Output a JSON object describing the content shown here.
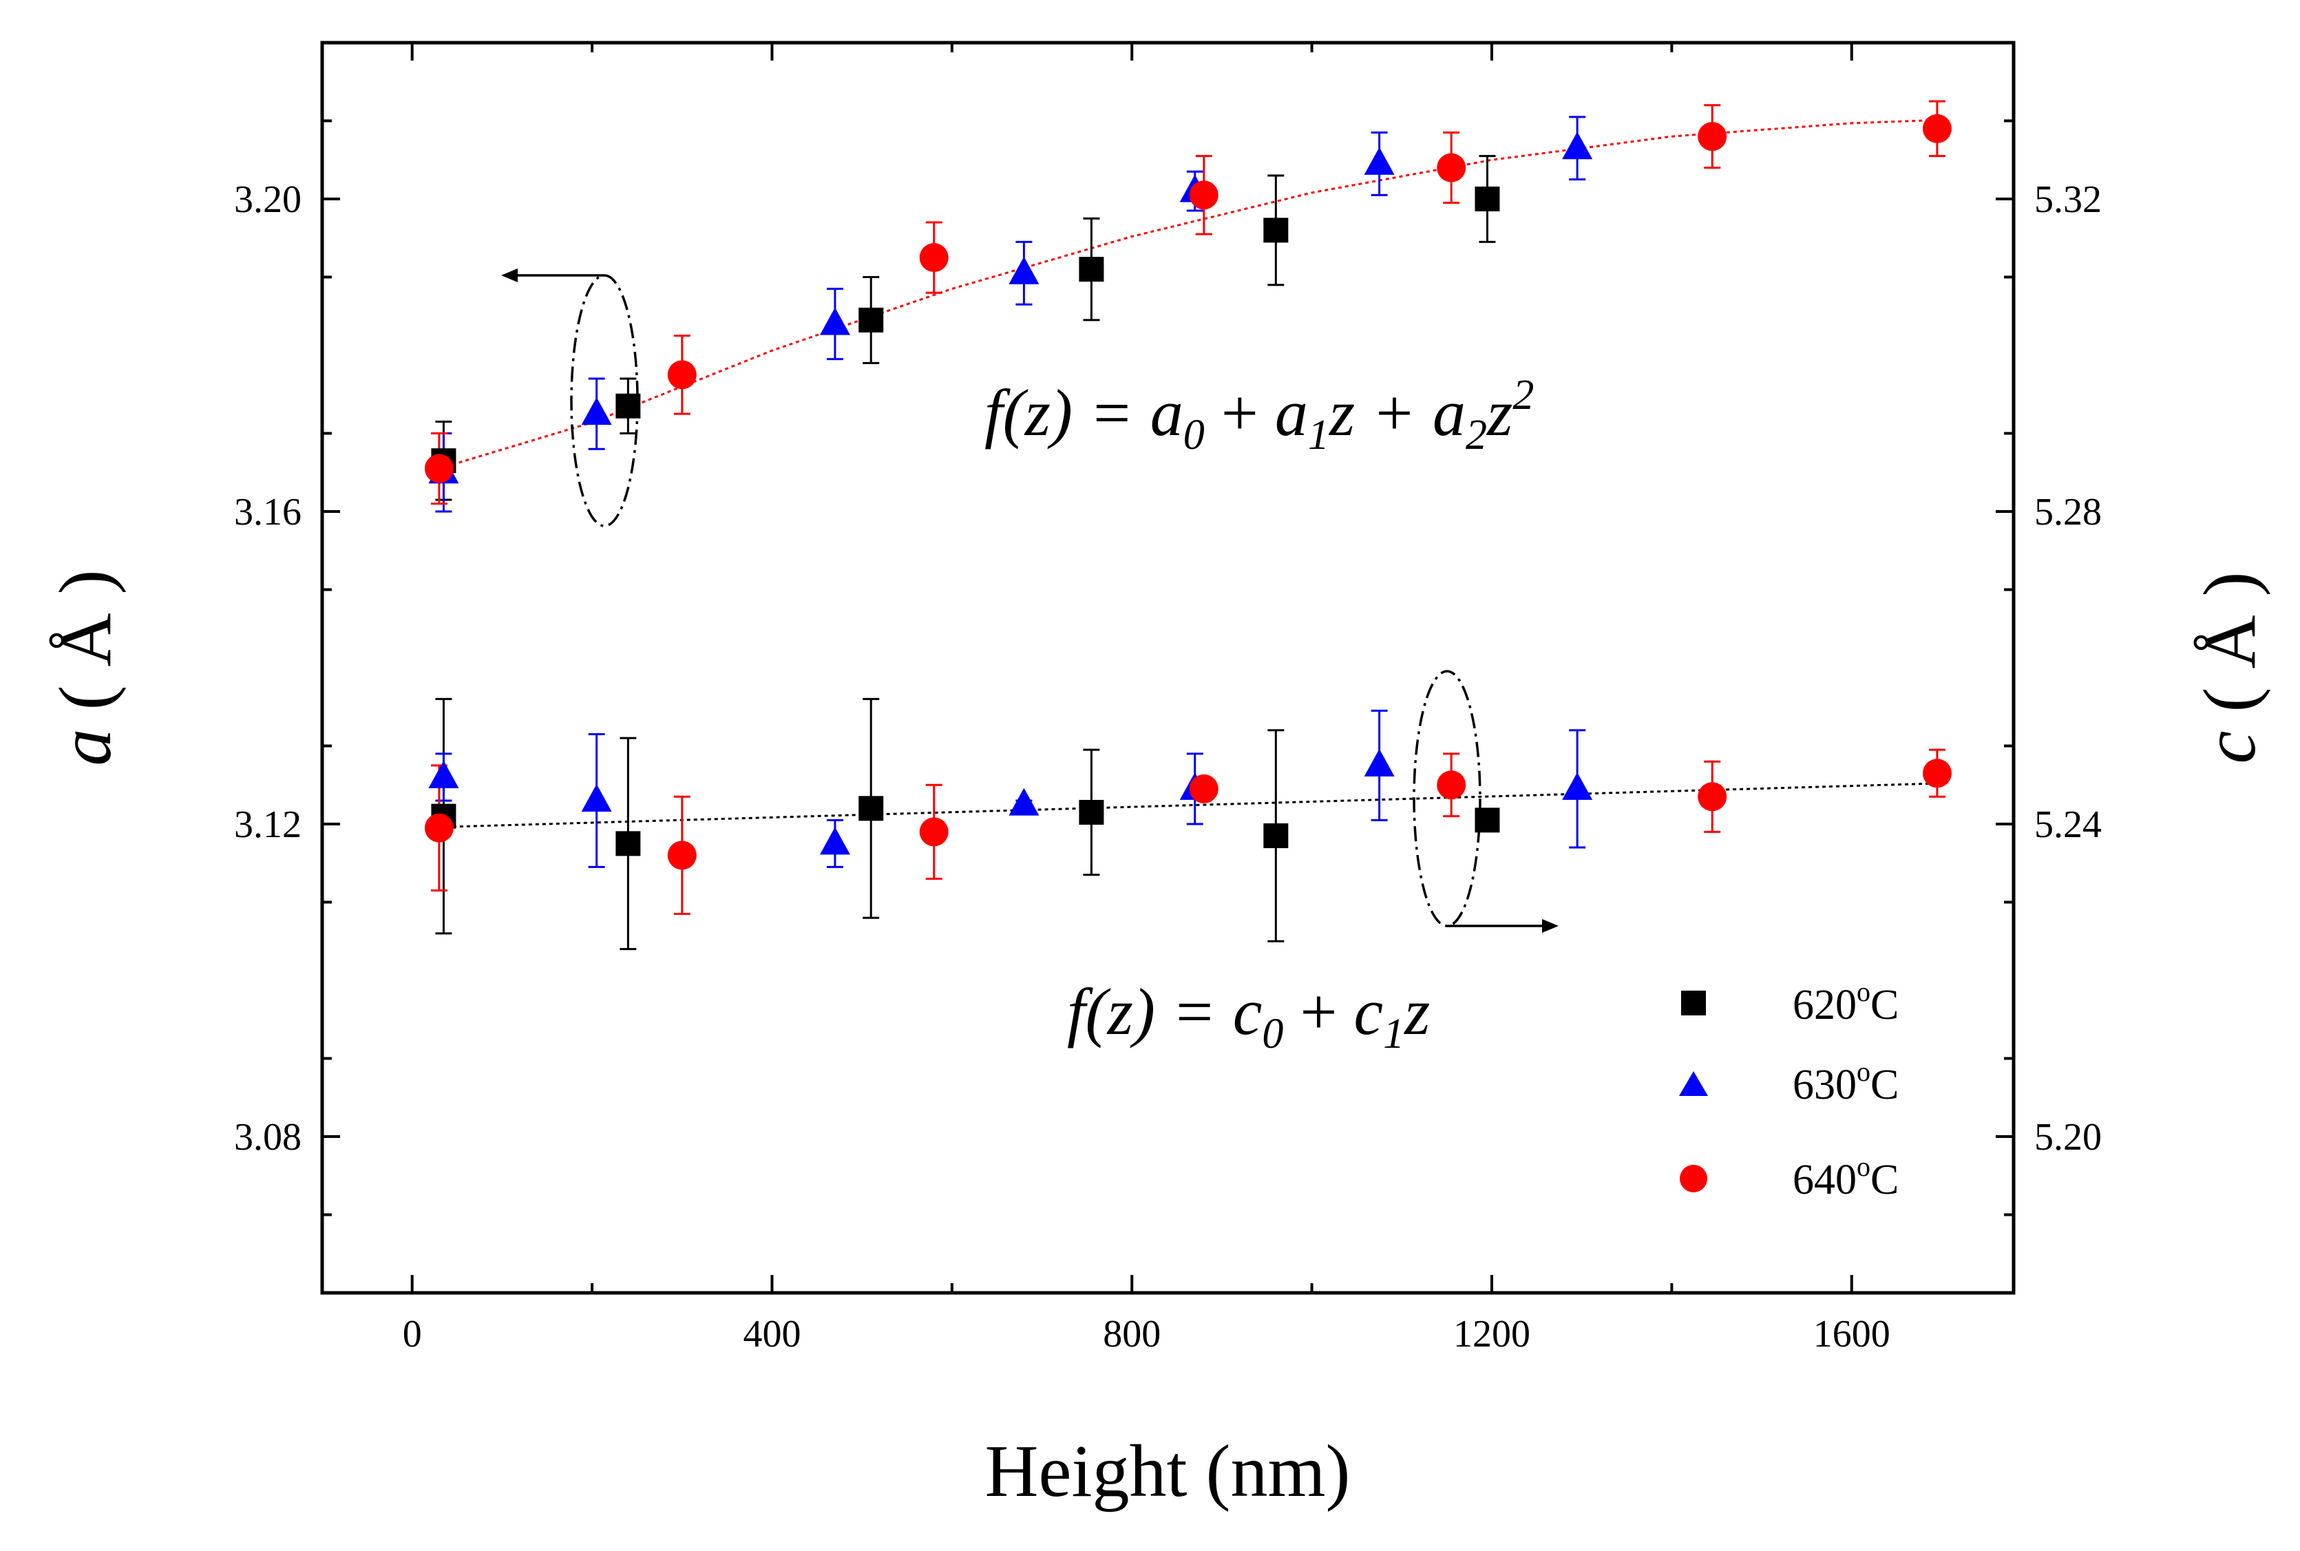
{
  "chart_data": {
    "type": "scatter",
    "title": "",
    "xlabel": "Height (nm)",
    "ylabel_left_var": "a",
    "ylabel_left_unit": "( Å )",
    "ylabel_right_var": "c",
    "ylabel_right_unit": "( Å )",
    "xlim": [
      -100,
      1780
    ],
    "ylim_left": [
      3.06,
      3.22
    ],
    "ylim_right": [
      5.18,
      5.34
    ],
    "x_ticks": [
      0,
      400,
      800,
      1200,
      1600
    ],
    "x_tick_labels": [
      "0",
      "400",
      "800",
      "1200",
      "1600"
    ],
    "y_left_ticks": [
      3.08,
      3.12,
      3.16,
      3.2
    ],
    "y_left_tick_labels": [
      "3.08",
      "3.12",
      "3.16",
      "3.20"
    ],
    "y_right_ticks": [
      5.2,
      5.24,
      5.28,
      5.32
    ],
    "y_right_tick_labels": [
      "5.20",
      "5.24",
      "5.28",
      "5.32"
    ],
    "series": [
      {
        "name": "620°C",
        "label_base": "620",
        "label_sup": "o",
        "label_unit": "C",
        "marker": "square",
        "color": "#000000",
        "axis": "left",
        "points": [
          {
            "x": 35,
            "y": 3.1665,
            "err": 0.005
          },
          {
            "x": 240,
            "y": 3.1735,
            "err": 0.0035
          },
          {
            "x": 510,
            "y": 3.1845,
            "err": 0.0055
          },
          {
            "x": 755,
            "y": 3.191,
            "err": 0.0065
          },
          {
            "x": 960,
            "y": 3.196,
            "err": 0.007
          },
          {
            "x": 1195,
            "y": 3.2,
            "err": 0.0055
          }
        ]
      },
      {
        "name": "620°C",
        "marker": "square",
        "color": "#000000",
        "axis": "right",
        "points": [
          {
            "x": 35,
            "y": 5.241,
            "err": 0.015
          },
          {
            "x": 240,
            "y": 5.2375,
            "err": 0.0135
          },
          {
            "x": 510,
            "y": 5.242,
            "err": 0.014
          },
          {
            "x": 755,
            "y": 5.2415,
            "err": 0.008
          },
          {
            "x": 960,
            "y": 5.2385,
            "err": 0.0135
          },
          {
            "x": 1195,
            "y": 5.2405,
            "err": 0.001
          }
        ]
      },
      {
        "name": "630°C",
        "label_base": "630",
        "label_sup": "o",
        "label_unit": "C",
        "marker": "triangle",
        "color": "#0000ff",
        "axis": "left",
        "points": [
          {
            "x": 35,
            "y": 3.165,
            "err": 0.005
          },
          {
            "x": 205,
            "y": 3.1725,
            "err": 0.0045
          },
          {
            "x": 470,
            "y": 3.184,
            "err": 0.0045
          },
          {
            "x": 680,
            "y": 3.1905,
            "err": 0.004
          },
          {
            "x": 870,
            "y": 3.201,
            "err": 0.0025
          },
          {
            "x": 1075,
            "y": 3.2045,
            "err": 0.004
          },
          {
            "x": 1295,
            "y": 3.2065,
            "err": 0.004
          }
        ]
      },
      {
        "name": "630°C",
        "marker": "triangle",
        "color": "#0000ff",
        "axis": "right",
        "points": [
          {
            "x": 35,
            "y": 5.246,
            "err": 0.003
          },
          {
            "x": 205,
            "y": 5.243,
            "err": 0.0085
          },
          {
            "x": 470,
            "y": 5.2375,
            "err": 0.003
          },
          {
            "x": 680,
            "y": 5.2425,
            "err": 0.0005
          },
          {
            "x": 870,
            "y": 5.2445,
            "err": 0.0045
          },
          {
            "x": 1075,
            "y": 5.2475,
            "err": 0.007
          },
          {
            "x": 1295,
            "y": 5.2445,
            "err": 0.0075
          }
        ]
      },
      {
        "name": "640°C",
        "label_base": "640",
        "label_sup": "o",
        "label_unit": "C",
        "marker": "circle",
        "color": "#ff0000",
        "axis": "left",
        "points": [
          {
            "x": 30,
            "y": 3.1655,
            "err": 0.0045
          },
          {
            "x": 300,
            "y": 3.1775,
            "err": 0.005
          },
          {
            "x": 580,
            "y": 3.1925,
            "err": 0.0045
          },
          {
            "x": 880,
            "y": 3.2005,
            "err": 0.005
          },
          {
            "x": 1155,
            "y": 3.204,
            "err": 0.0045
          },
          {
            "x": 1445,
            "y": 3.208,
            "err": 0.004
          },
          {
            "x": 1695,
            "y": 3.209,
            "err": 0.0035
          }
        ]
      },
      {
        "name": "640°C",
        "marker": "circle",
        "color": "#ff0000",
        "axis": "right",
        "points": [
          {
            "x": 30,
            "y": 5.2395,
            "err": 0.008
          },
          {
            "x": 300,
            "y": 5.236,
            "err": 0.0075
          },
          {
            "x": 580,
            "y": 5.239,
            "err": 0.006
          },
          {
            "x": 880,
            "y": 5.2445,
            "err": 0.0005
          },
          {
            "x": 1155,
            "y": 5.245,
            "err": 0.004
          },
          {
            "x": 1445,
            "y": 5.2435,
            "err": 0.0045
          },
          {
            "x": 1695,
            "y": 5.2465,
            "err": 0.003
          }
        ]
      }
    ],
    "fits": [
      {
        "name": "a fit",
        "kind": "quadratic",
        "axis": "left",
        "color": "#ff0000",
        "x_range": [
          30,
          1695
        ],
        "curve_x": [
          30,
          200,
          400,
          600,
          800,
          1000,
          1200,
          1400,
          1600,
          1695
        ],
        "curve_y": [
          3.1655,
          3.1714,
          3.1806,
          3.1885,
          3.1952,
          3.2008,
          3.205,
          3.208,
          3.2097,
          3.2101
        ]
      },
      {
        "name": "c fit",
        "kind": "linear",
        "axis": "right",
        "color": "#000000",
        "x_range": [
          30,
          1695
        ],
        "curve_x": [
          30,
          1695
        ],
        "curve_y": [
          5.2396,
          5.2452
        ]
      }
    ],
    "annotations": {
      "formula_a": {
        "lhs": "f(z) = ",
        "parts": [
          "a",
          "0",
          " + ",
          "a",
          "1",
          "z + ",
          "a",
          "2",
          "z",
          "2"
        ]
      },
      "formula_c": {
        "lhs": "f(z) = ",
        "parts": [
          "c",
          "0",
          " + ",
          "c",
          "1",
          "z"
        ]
      },
      "arrow_a": {
        "direction": "left",
        "points_to": "left axis"
      },
      "arrow_c": {
        "direction": "right",
        "points_to": "right axis"
      }
    },
    "legend_position": "bottom-right",
    "grid": false
  }
}
